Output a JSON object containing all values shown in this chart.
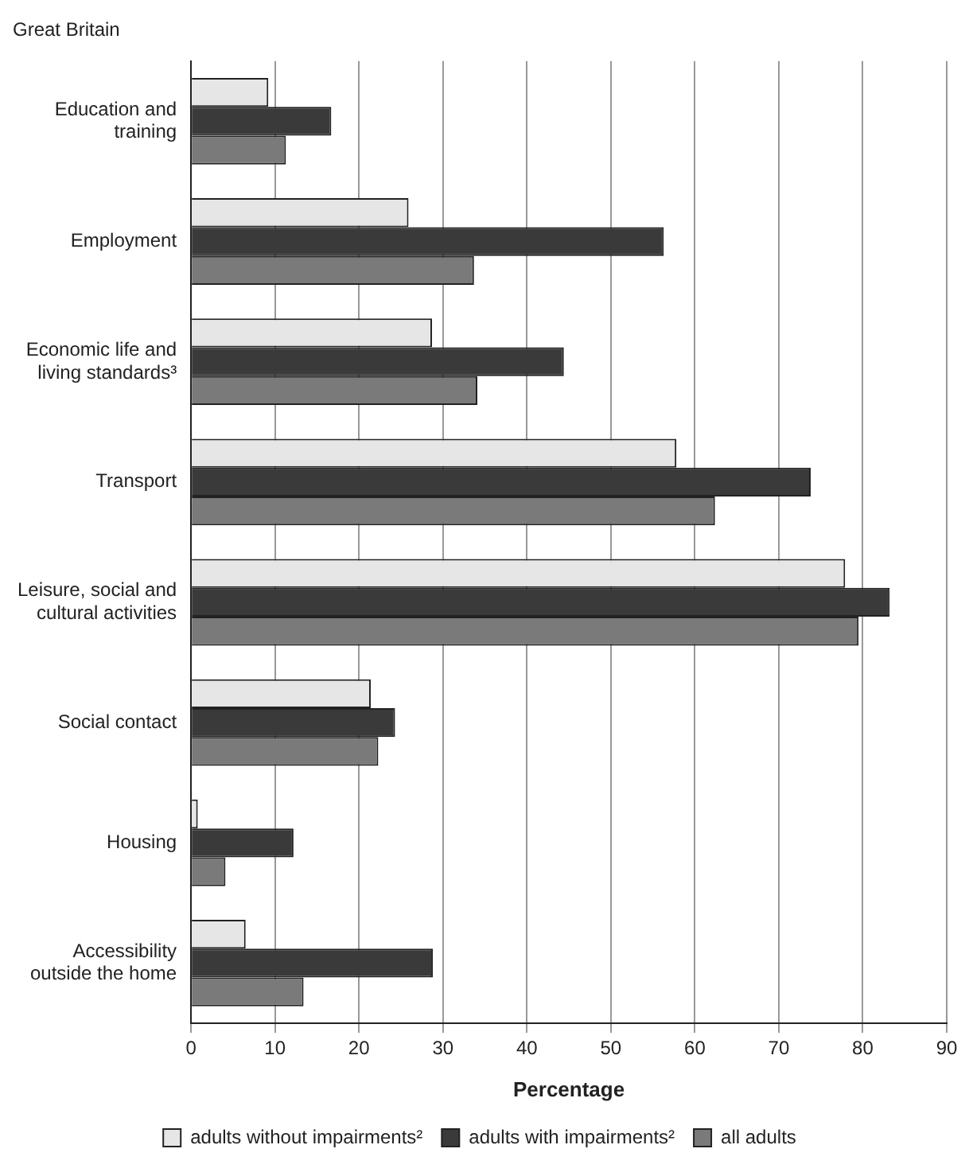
{
  "chart_data": {
    "type": "bar",
    "orientation": "horizontal",
    "title": "Great Britain",
    "xlabel": "Percentage",
    "categories": [
      "Education and training",
      "Employment",
      "Economic life and living standards³",
      "Transport",
      "Leisure, social and cultural activities",
      "Social contact",
      "Housing",
      "Accessibility outside the home"
    ],
    "series": [
      {
        "name": "adults without impairments²",
        "color": "#e6e6e6",
        "values": [
          9.2,
          25.9,
          28.7,
          57.8,
          77.9,
          21.4,
          0.8,
          6.5
        ]
      },
      {
        "name": "adults with impairments²",
        "color": "#3a3a3a",
        "values": [
          16.7,
          56.3,
          44.4,
          73.8,
          83.2,
          24.3,
          12.2,
          28.8
        ]
      },
      {
        "name": "all adults",
        "color": "#7a7a7a",
        "values": [
          11.3,
          33.7,
          34.1,
          62.4,
          79.5,
          22.3,
          4.1,
          13.4
        ]
      }
    ],
    "xlim": [
      0,
      90
    ],
    "xticks": [
      0,
      10,
      20,
      30,
      40,
      50,
      60,
      70,
      80,
      90
    ],
    "grid": "x",
    "legend": "bottom"
  }
}
